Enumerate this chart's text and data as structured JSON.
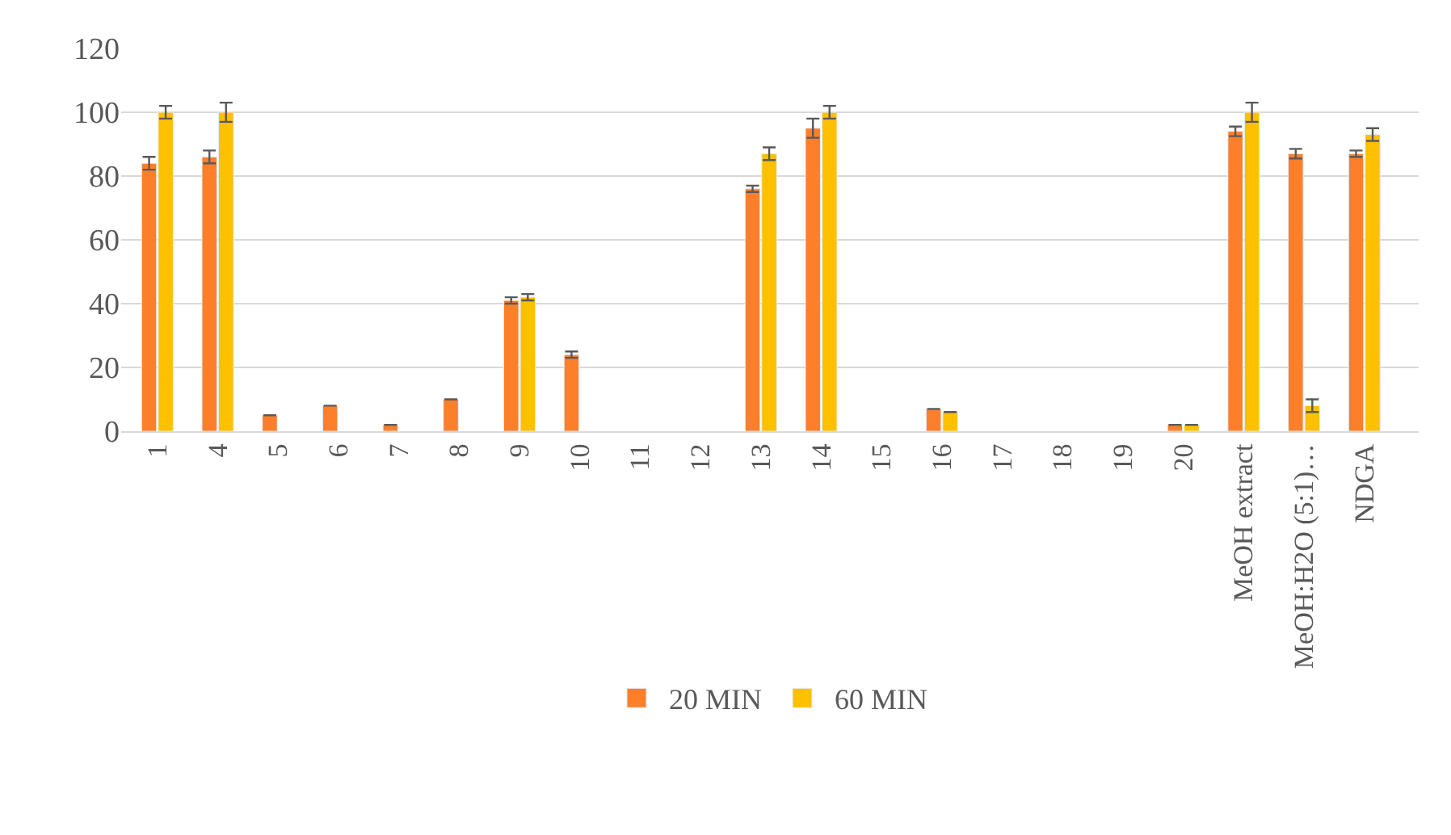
{
  "chart_data": {
    "type": "bar",
    "categories": [
      "1",
      "4",
      "5",
      "6",
      "7",
      "8",
      "9",
      "10",
      "11",
      "12",
      "13",
      "14",
      "15",
      "16",
      "17",
      "18",
      "19",
      "20",
      "MeOH extract",
      "MeOH:H2O (5:1)…",
      "NDGA"
    ],
    "series": [
      {
        "name": "20 MIN",
        "color": "#fe7f2a",
        "values": [
          84,
          86,
          5,
          8,
          2,
          10,
          41,
          24,
          null,
          null,
          76,
          95,
          null,
          7,
          null,
          null,
          null,
          2,
          94,
          87,
          87
        ],
        "errors": [
          2,
          2,
          null,
          null,
          null,
          null,
          1,
          1,
          null,
          null,
          1,
          3,
          null,
          null,
          null,
          null,
          null,
          null,
          1.5,
          1.5,
          1
        ]
      },
      {
        "name": "60 MIN",
        "color": "#ffc000",
        "values": [
          100,
          100,
          null,
          null,
          null,
          null,
          42,
          null,
          null,
          null,
          87,
          100,
          null,
          6,
          null,
          null,
          null,
          2,
          100,
          8,
          93
        ],
        "errors": [
          2,
          3,
          null,
          null,
          null,
          null,
          1,
          null,
          null,
          null,
          2,
          2,
          null,
          null,
          null,
          null,
          null,
          null,
          3,
          2,
          2
        ]
      }
    ],
    "ylim": [
      0,
      120
    ],
    "yticks": [
      0,
      20,
      40,
      60,
      80,
      100,
      120
    ],
    "grid": "y",
    "legend": "bottom"
  }
}
